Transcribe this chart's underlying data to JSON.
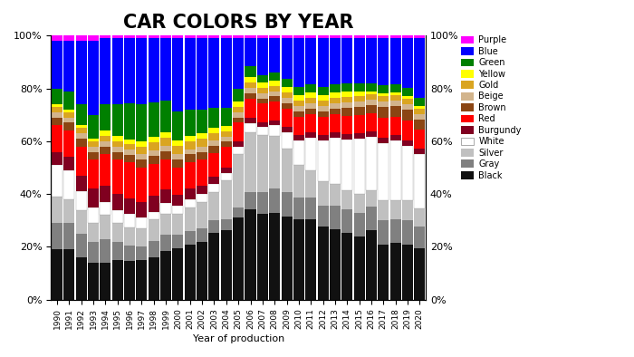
{
  "years": [
    1990,
    1991,
    1992,
    1993,
    1994,
    1995,
    1996,
    1997,
    1998,
    1999,
    2000,
    2001,
    2002,
    2003,
    2004,
    2005,
    2006,
    2007,
    2008,
    2009,
    2010,
    2011,
    2012,
    2013,
    2014,
    2015,
    2016,
    2017,
    2018,
    2019,
    2020
  ],
  "colors_order": [
    "Black",
    "Gray",
    "Silver",
    "White",
    "Burgundy",
    "Red",
    "Brown",
    "Beige",
    "Gold",
    "Yellow",
    "Green",
    "Blue",
    "Purple"
  ],
  "hex_colors": {
    "Black": "#111111",
    "Gray": "#808080",
    "Silver": "#C0C0C0",
    "White": "#FFFFFF",
    "Burgundy": "#800020",
    "Red": "#FF0000",
    "Brown": "#8B4513",
    "Beige": "#D2B48C",
    "Gold": "#DAA520",
    "Yellow": "#FFFF00",
    "Green": "#008000",
    "Blue": "#0000FF",
    "Purple": "#FF00FF"
  },
  "data": {
    "Black": [
      19,
      19,
      16,
      14,
      14,
      15,
      15,
      15,
      16,
      18,
      19,
      21,
      22,
      26,
      27,
      31,
      33,
      33,
      33,
      31,
      30,
      30,
      27,
      26,
      25,
      24,
      26,
      20,
      21,
      20,
      19
    ],
    "Gray": [
      10,
      10,
      9,
      8,
      9,
      7,
      6,
      5,
      6,
      6,
      5,
      5,
      5,
      5,
      4,
      4,
      6,
      8,
      9,
      9,
      8,
      8,
      8,
      9,
      9,
      9,
      9,
      9,
      9,
      9,
      8
    ],
    "Silver": [
      10,
      9,
      9,
      7,
      9,
      7,
      7,
      7,
      8,
      8,
      8,
      9,
      10,
      11,
      15,
      20,
      22,
      22,
      20,
      16,
      12,
      10,
      9,
      8,
      7,
      7,
      6,
      7,
      7,
      7,
      7
    ],
    "White": [
      12,
      11,
      7,
      6,
      5,
      5,
      5,
      4,
      3,
      4,
      3,
      3,
      3,
      3,
      3,
      3,
      3,
      3,
      4,
      6,
      9,
      12,
      15,
      17,
      19,
      21,
      20,
      21,
      22,
      20,
      20
    ],
    "Burgundy": [
      5,
      5,
      6,
      7,
      6,
      6,
      6,
      6,
      6,
      5,
      4,
      4,
      3,
      3,
      2,
      2,
      2,
      2,
      2,
      2,
      2,
      2,
      2,
      2,
      2,
      2,
      2,
      2,
      2,
      2,
      2
    ],
    "Red": [
      10,
      10,
      11,
      11,
      12,
      13,
      14,
      13,
      12,
      11,
      10,
      10,
      10,
      9,
      8,
      7,
      7,
      7,
      7,
      7,
      7,
      7,
      7,
      7,
      7,
      7,
      7,
      7,
      7,
      7,
      7
    ],
    "Brown": [
      3,
      3,
      3,
      3,
      3,
      3,
      3,
      3,
      3,
      3,
      3,
      3,
      3,
      3,
      2,
      2,
      2,
      2,
      2,
      2,
      2,
      2,
      2,
      2,
      3,
      3,
      3,
      4,
      4,
      4,
      4
    ],
    "Beige": [
      2,
      2,
      2,
      2,
      2,
      2,
      2,
      2,
      2,
      2,
      2,
      2,
      2,
      2,
      2,
      2,
      2,
      2,
      2,
      2,
      2,
      2,
      2,
      2,
      2,
      2,
      2,
      2,
      2,
      2,
      2
    ],
    "Gold": [
      2,
      2,
      2,
      2,
      2,
      2,
      2,
      3,
      3,
      3,
      3,
      3,
      3,
      3,
      2,
      2,
      2,
      2,
      2,
      2,
      2,
      2,
      2,
      2,
      2,
      2,
      2,
      2,
      2,
      2,
      2
    ],
    "Yellow": [
      1,
      1,
      1,
      1,
      2,
      2,
      2,
      2,
      2,
      2,
      2,
      2,
      2,
      2,
      2,
      2,
      2,
      2,
      2,
      2,
      2,
      2,
      2,
      2,
      2,
      2,
      1,
      1,
      1,
      1,
      1
    ],
    "Green": [
      6,
      7,
      8,
      9,
      10,
      12,
      14,
      14,
      13,
      12,
      11,
      10,
      9,
      8,
      7,
      5,
      4,
      3,
      3,
      3,
      3,
      3,
      3,
      3,
      3,
      3,
      3,
      3,
      3,
      3,
      3
    ],
    "Blue": [
      18,
      19,
      24,
      28,
      25,
      25,
      25,
      25,
      24,
      23,
      27,
      27,
      27,
      27,
      27,
      19,
      10,
      14,
      13,
      15,
      18,
      17,
      18,
      17,
      17,
      17,
      17,
      17,
      17,
      18,
      22
    ],
    "Purple": [
      2,
      2,
      2,
      2,
      1,
      1,
      1,
      1,
      1,
      1,
      1,
      1,
      1,
      1,
      1,
      1,
      1,
      1,
      1,
      1,
      1,
      1,
      1,
      1,
      1,
      1,
      1,
      1,
      1,
      1,
      1
    ]
  },
  "title": "CAR COLORS BY YEAR",
  "xlabel": "Year of production",
  "legend_order": [
    "Purple",
    "Blue",
    "Green",
    "Yellow",
    "Gold",
    "Beige",
    "Brown",
    "Red",
    "Burgundy",
    "White",
    "Silver",
    "Gray",
    "Black"
  ],
  "yticks": [
    0,
    20,
    40,
    60,
    80,
    100
  ]
}
